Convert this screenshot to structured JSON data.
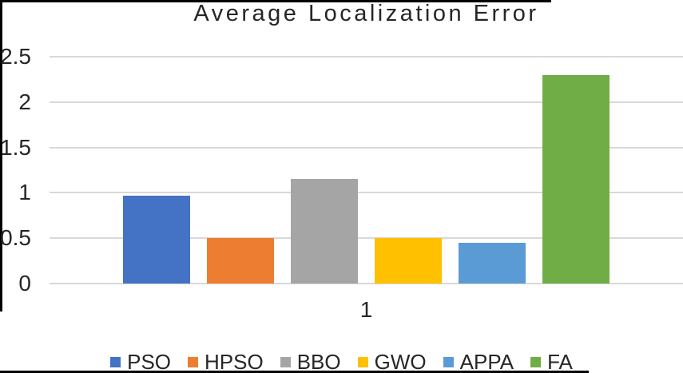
{
  "chart_data": {
    "type": "bar",
    "title": "Average Localization Error",
    "categories": [
      "1"
    ],
    "series": [
      {
        "name": "PSO",
        "color": "#4472C4",
        "values": [
          0.97
        ]
      },
      {
        "name": "HPSO",
        "color": "#ED7D31",
        "values": [
          0.5
        ]
      },
      {
        "name": "BBO",
        "color": "#A5A5A5",
        "values": [
          1.15
        ]
      },
      {
        "name": "GWO",
        "color": "#FFC000",
        "values": [
          0.5
        ]
      },
      {
        "name": "APPA",
        "color": "#5B9BD5",
        "values": [
          0.45
        ]
      },
      {
        "name": "FA",
        "color": "#70AD47",
        "values": [
          2.3
        ]
      }
    ],
    "xlabel": "",
    "ylabel": "",
    "ylim": [
      0,
      2.5
    ],
    "yticks": [
      {
        "label": "0",
        "value": 0
      },
      {
        "label": "0.5",
        "value": 0.5
      },
      {
        "label": "1",
        "value": 1
      },
      {
        "label": "1.5",
        "value": 1.5
      },
      {
        "label": "2",
        "value": 2
      },
      {
        "label": "2.5",
        "value": 2.5
      }
    ],
    "grid": true,
    "gridline_color": "#D9D9D9",
    "legend_position": "bottom",
    "text_color": "#262626"
  }
}
